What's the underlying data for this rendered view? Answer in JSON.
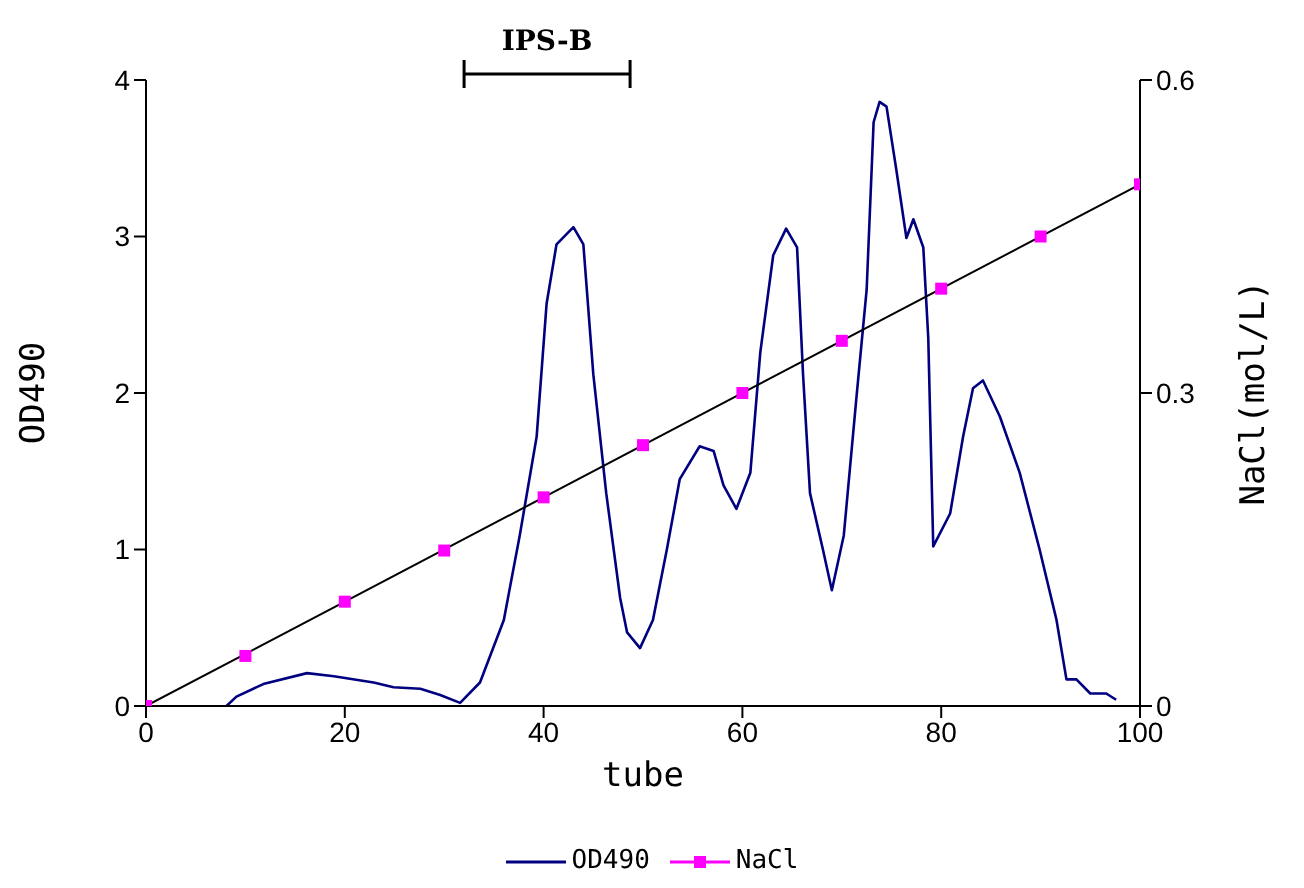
{
  "chart_data": {
    "type": "line",
    "xlabel": "tube",
    "ylabel": "OD490",
    "y2label": "NaCl(mol/L)",
    "xlim": [
      0,
      100
    ],
    "xticks": [
      0,
      20,
      40,
      60,
      80,
      100
    ],
    "ylim": [
      0,
      4
    ],
    "yticks": [
      0,
      1,
      2,
      3,
      4
    ],
    "y2lim": [
      0,
      0.6
    ],
    "y2ticks": [
      0,
      0.3,
      0.6
    ],
    "legend": "bottom",
    "annotations": [
      "IPS-B"
    ],
    "series": [
      {
        "name": "OD490",
        "color": "#000080",
        "axis": "y",
        "x": [
          8.1,
          9.1,
          11.8,
          16.2,
          18.9,
          22.9,
          24.9,
          27.6,
          29.6,
          31.6,
          33.6,
          36,
          37.6,
          39.3,
          40.3,
          41.3,
          43,
          44,
          45,
          46.3,
          47.7,
          48.4,
          49.7,
          51,
          52.4,
          53.7,
          55.7,
          57.1,
          58.1,
          59.4,
          60.8,
          61.8,
          63.1,
          64.4,
          65.5,
          66.1,
          66.8,
          68.1,
          69,
          70.2,
          71.5,
          72.5,
          73.2,
          73.8,
          74.5,
          75.5,
          76.5,
          77.2,
          78.2,
          78.7,
          79.2,
          80.9,
          82.2,
          83.2,
          84.2,
          85.9,
          87.9,
          89.9,
          91.6,
          92.6,
          93.6,
          95,
          96.6,
          97.6
        ],
        "values": [
          0,
          0.06,
          0.14,
          0.21,
          0.19,
          0.15,
          0.12,
          0.11,
          0.07,
          0.02,
          0.15,
          0.55,
          1.09,
          1.72,
          2.57,
          2.95,
          3.06,
          2.95,
          2.12,
          1.36,
          0.69,
          0.47,
          0.37,
          0.55,
          1.0,
          1.45,
          1.66,
          1.63,
          1.41,
          1.26,
          1.49,
          2.26,
          2.88,
          3.05,
          2.93,
          2.12,
          1.36,
          1.0,
          0.74,
          1.09,
          1.99,
          2.66,
          3.73,
          3.86,
          3.83,
          3.42,
          2.99,
          3.11,
          2.93,
          2.35,
          1.02,
          1.23,
          1.72,
          2.03,
          2.08,
          1.85,
          1.49,
          1.0,
          0.55,
          0.17,
          0.17,
          0.08,
          0.08,
          0.04
        ]
      },
      {
        "name": "NaCl",
        "type": "scatter",
        "marker": "square",
        "color": "#ff00ff",
        "axis": "y2",
        "x": [
          0,
          10,
          20,
          30,
          40,
          50,
          60,
          70,
          80,
          90,
          100
        ],
        "values": [
          0,
          0.048,
          0.1,
          0.149,
          0.2,
          0.25,
          0.3,
          0.35,
          0.4,
          0.45,
          0.5
        ]
      },
      {
        "type": "line",
        "color": "#000000",
        "axis": "y2",
        "x": [
          0,
          100
        ],
        "values": [
          0,
          0.5
        ]
      }
    ]
  }
}
